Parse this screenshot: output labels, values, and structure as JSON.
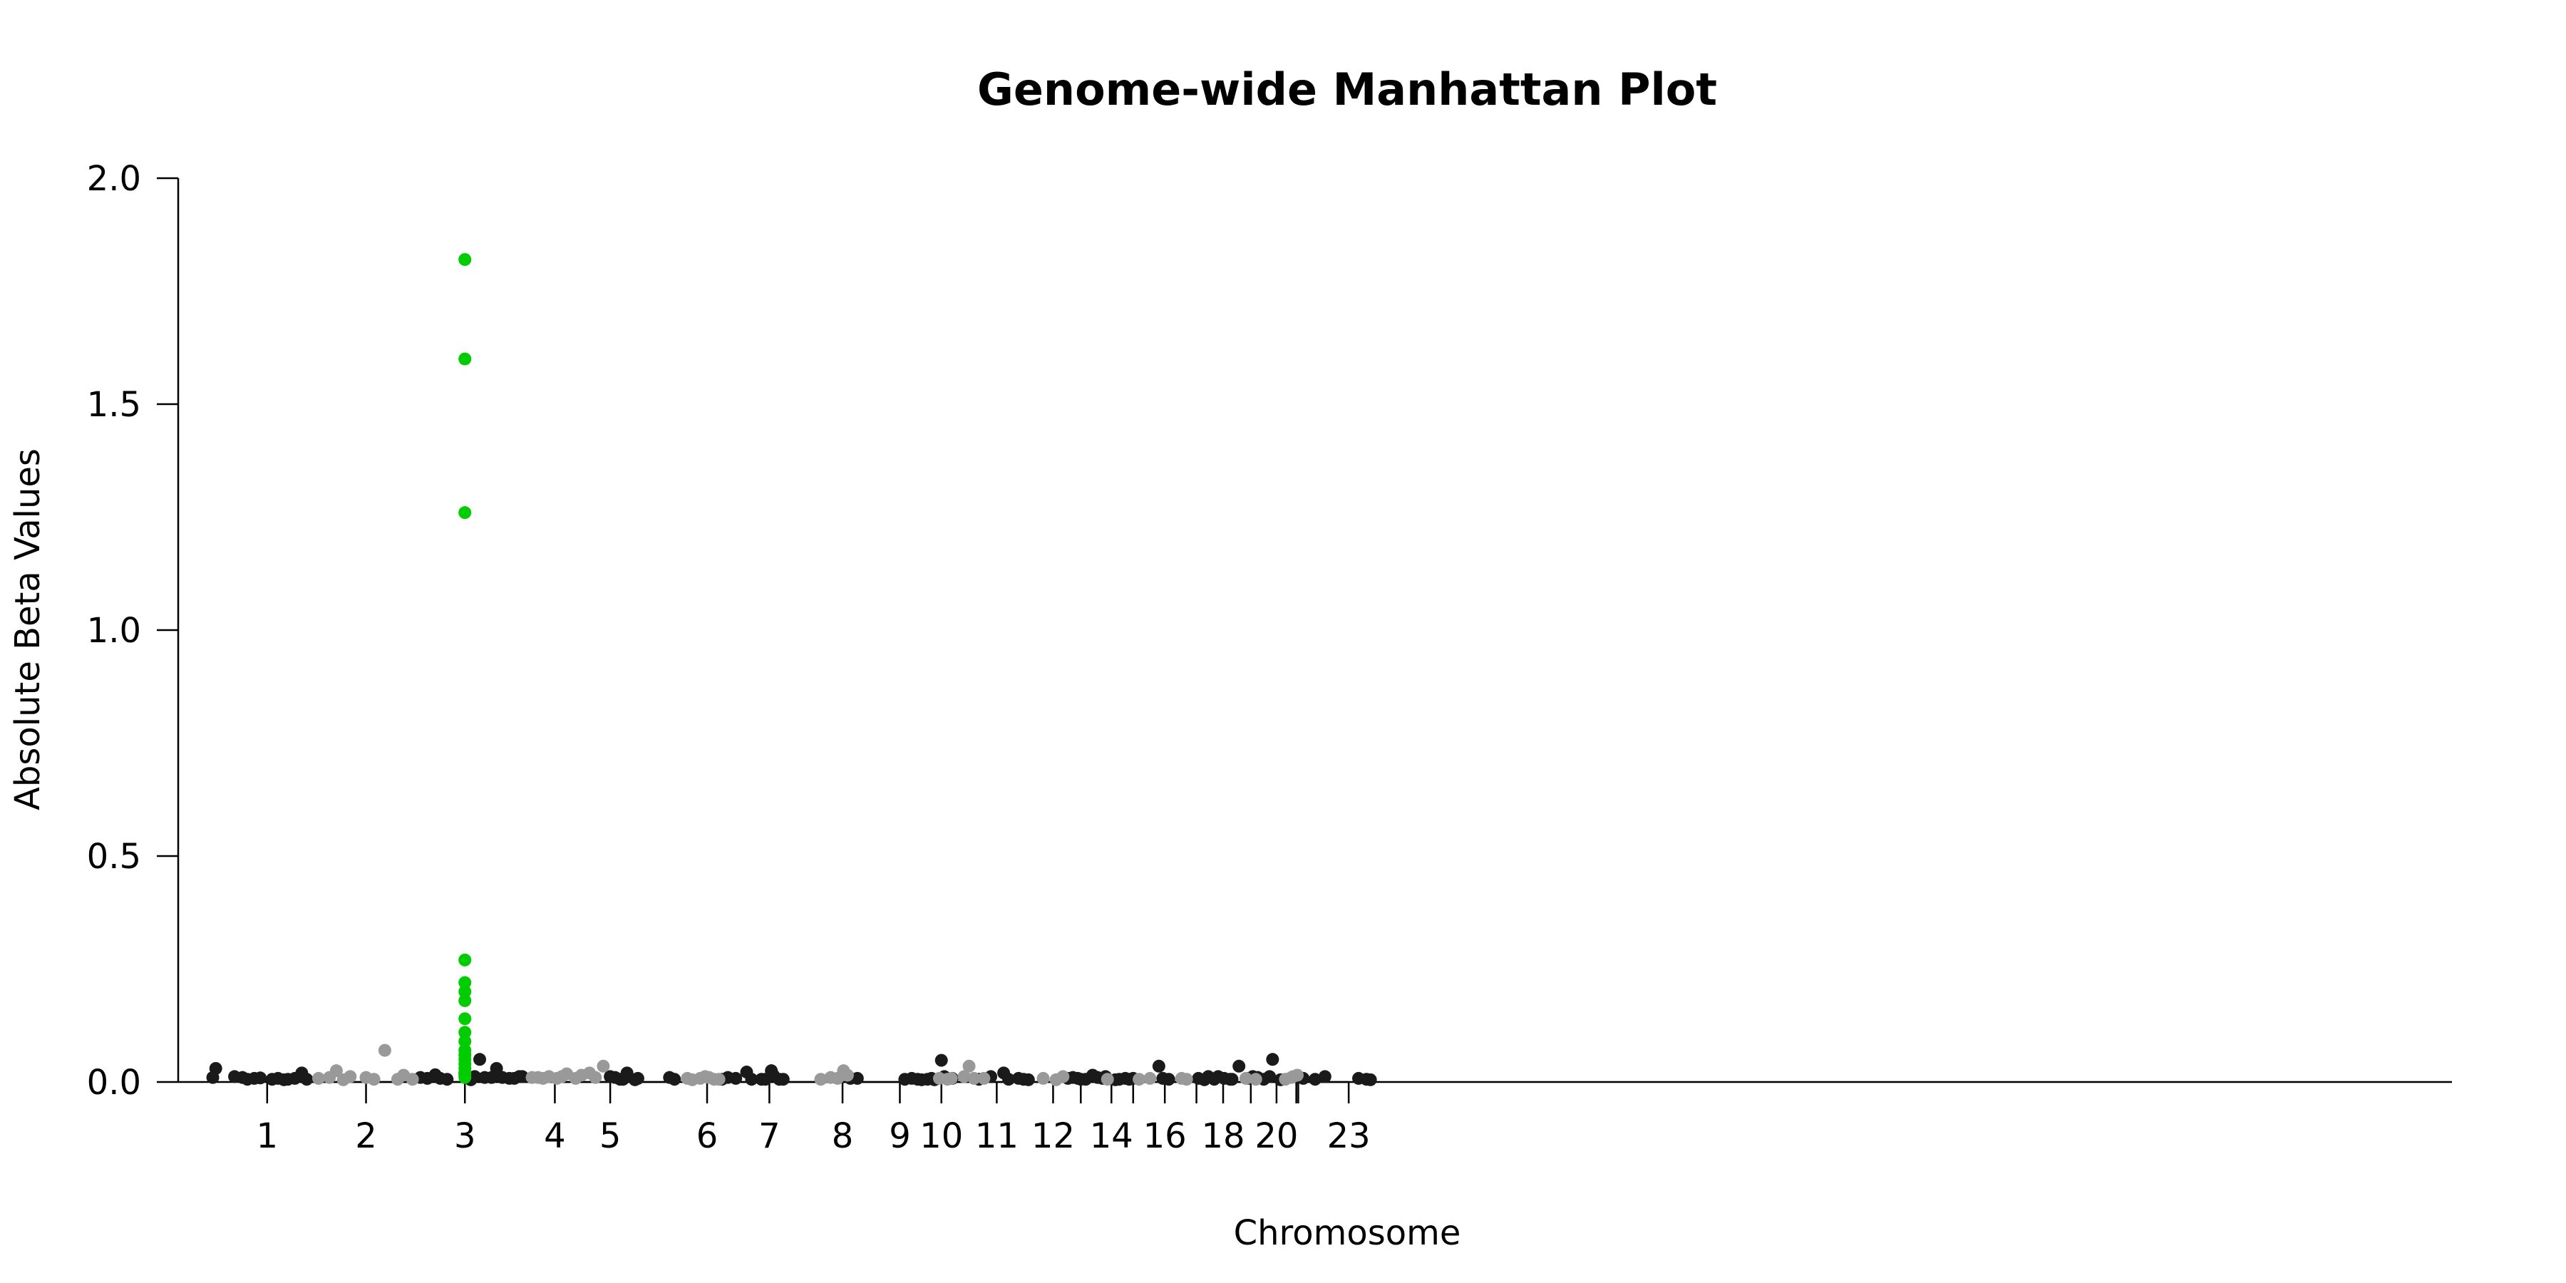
{
  "chart_data": {
    "type": "scatter",
    "title": "Genome-wide Manhattan Plot",
    "xlabel": "Chromosome",
    "ylabel": "Absolute Beta Values",
    "ylim": [
      0,
      2.0
    ],
    "yticks": [
      "0.0",
      "0.5",
      "1.0",
      "1.5",
      "2.0"
    ],
    "xlim": [
      0.1,
      23.1
    ],
    "xticks": [
      {
        "label": "1",
        "x": 1.0
      },
      {
        "label": "2",
        "x": 2.0
      },
      {
        "label": "3",
        "x": 3.0
      },
      {
        "label": "4",
        "x": 3.91
      },
      {
        "label": "5",
        "x": 4.47
      },
      {
        "label": "6",
        "x": 5.45
      },
      {
        "label": "7",
        "x": 6.08
      },
      {
        "label": "8",
        "x": 6.82
      },
      {
        "label": "9",
        "x": 7.4
      },
      {
        "label": "10",
        "x": 7.82
      },
      {
        "label": "11",
        "x": 8.38
      },
      {
        "label": "12",
        "x": 8.95
      },
      {
        "label": "14",
        "x": 9.54
      },
      {
        "label": "16",
        "x": 10.08
      },
      {
        "label": "18",
        "x": 10.67
      },
      {
        "label": "20",
        "x": 11.21
      },
      {
        "label": "23",
        "x": 11.94
      }
    ],
    "extra_ticks": [
      9.23,
      9.76,
      10.4,
      10.95,
      11.41,
      11.43
    ],
    "colors": {
      "dark": "#1a1a1a",
      "light": "#999999",
      "highlight": "#00cc00"
    },
    "grid": false,
    "legend": "none",
    "series": [
      {
        "color": "dark",
        "points": [
          [
            0.45,
            0.01
          ],
          [
            0.48,
            0.03
          ],
          [
            0.67,
            0.012
          ],
          [
            0.75,
            0.01
          ],
          [
            0.8,
            0.006
          ],
          [
            0.87,
            0.008
          ],
          [
            0.93,
            0.009
          ],
          [
            1.05,
            0.006
          ],
          [
            1.11,
            0.008
          ],
          [
            1.17,
            0.005
          ],
          [
            1.21,
            0.006
          ],
          [
            1.28,
            0.008
          ],
          [
            1.35,
            0.02
          ],
          [
            1.4,
            0.006
          ],
          [
            2.55,
            0.01
          ],
          [
            2.62,
            0.008
          ],
          [
            2.7,
            0.016
          ],
          [
            2.75,
            0.008
          ],
          [
            2.82,
            0.006
          ],
          [
            3.0,
            0.02
          ],
          [
            3.06,
            0.005
          ],
          [
            3.1,
            0.012
          ],
          [
            3.15,
            0.05
          ],
          [
            3.2,
            0.01
          ],
          [
            3.27,
            0.01
          ],
          [
            3.32,
            0.03
          ],
          [
            3.38,
            0.01
          ],
          [
            3.45,
            0.008
          ],
          [
            3.5,
            0.008
          ],
          [
            3.55,
            0.012
          ],
          [
            3.58,
            0.012
          ],
          [
            4.47,
            0.012
          ],
          [
            4.52,
            0.01
          ],
          [
            4.57,
            0.006
          ],
          [
            4.64,
            0.02
          ],
          [
            4.6,
            0.006
          ],
          [
            4.72,
            0.005
          ],
          [
            4.75,
            0.008
          ],
          [
            5.07,
            0.01
          ],
          [
            5.12,
            0.006
          ],
          [
            5.6,
            0.006
          ],
          [
            5.66,
            0.01
          ],
          [
            5.74,
            0.008
          ],
          [
            5.85,
            0.022
          ],
          [
            5.9,
            0.006
          ],
          [
            6.0,
            0.006
          ],
          [
            6.04,
            0.006
          ],
          [
            6.1,
            0.025
          ],
          [
            6.12,
            0.015
          ],
          [
            6.18,
            0.006
          ],
          [
            6.22,
            0.006
          ],
          [
            6.9,
            0.008
          ],
          [
            6.97,
            0.008
          ],
          [
            7.45,
            0.006
          ],
          [
            7.52,
            0.008
          ],
          [
            7.58,
            0.006
          ],
          [
            7.62,
            0.005
          ],
          [
            7.68,
            0.006
          ],
          [
            7.72,
            0.008
          ],
          [
            7.75,
            0.005
          ],
          [
            7.82,
            0.048
          ],
          [
            7.85,
            0.012
          ],
          [
            7.93,
            0.008
          ],
          [
            8.2,
            0.006
          ],
          [
            8.32,
            0.012
          ],
          [
            8.45,
            0.02
          ],
          [
            8.5,
            0.006
          ],
          [
            8.6,
            0.008
          ],
          [
            8.65,
            0.006
          ],
          [
            8.7,
            0.005
          ],
          [
            9.1,
            0.008
          ],
          [
            9.15,
            0.01
          ],
          [
            9.2,
            0.008
          ],
          [
            9.23,
            0.006
          ],
          [
            9.28,
            0.006
          ],
          [
            9.35,
            0.015
          ],
          [
            9.4,
            0.01
          ],
          [
            9.45,
            0.008
          ],
          [
            9.48,
            0.012
          ],
          [
            9.58,
            0.005
          ],
          [
            9.62,
            0.006
          ],
          [
            9.68,
            0.008
          ],
          [
            9.72,
            0.006
          ],
          [
            9.76,
            0.008
          ],
          [
            10.02,
            0.035
          ],
          [
            10.06,
            0.008
          ],
          [
            10.12,
            0.006
          ],
          [
            10.42,
            0.008
          ],
          [
            10.48,
            0.005
          ],
          [
            10.52,
            0.012
          ],
          [
            10.58,
            0.006
          ],
          [
            10.62,
            0.012
          ],
          [
            10.68,
            0.008
          ],
          [
            10.74,
            0.006
          ],
          [
            10.76,
            0.006
          ],
          [
            10.83,
            0.035
          ],
          [
            10.93,
            0.008
          ],
          [
            10.97,
            0.012
          ],
          [
            11.02,
            0.01
          ],
          [
            11.08,
            0.006
          ],
          [
            11.14,
            0.012
          ],
          [
            11.17,
            0.05
          ],
          [
            11.25,
            0.005
          ],
          [
            11.48,
            0.008
          ],
          [
            11.6,
            0.006
          ],
          [
            11.7,
            0.012
          ],
          [
            12.04,
            0.008
          ],
          [
            12.12,
            0.006
          ],
          [
            12.16,
            0.005
          ]
        ]
      },
      {
        "color": "light",
        "points": [
          [
            1.52,
            0.008
          ],
          [
            1.63,
            0.01
          ],
          [
            1.7,
            0.025
          ],
          [
            1.77,
            0.005
          ],
          [
            1.84,
            0.012
          ],
          [
            2.0,
            0.01
          ],
          [
            2.08,
            0.006
          ],
          [
            2.19,
            0.07
          ],
          [
            2.32,
            0.006
          ],
          [
            2.38,
            0.015
          ],
          [
            2.47,
            0.006
          ],
          [
            3.68,
            0.01
          ],
          [
            3.74,
            0.01
          ],
          [
            3.79,
            0.008
          ],
          [
            3.85,
            0.012
          ],
          [
            3.93,
            0.008
          ],
          [
            3.98,
            0.012
          ],
          [
            4.03,
            0.018
          ],
          [
            4.12,
            0.008
          ],
          [
            4.18,
            0.015
          ],
          [
            4.26,
            0.02
          ],
          [
            4.32,
            0.01
          ],
          [
            4.4,
            0.035
          ],
          [
            5.25,
            0.008
          ],
          [
            5.3,
            0.005
          ],
          [
            5.38,
            0.008
          ],
          [
            5.43,
            0.012
          ],
          [
            5.47,
            0.01
          ],
          [
            5.52,
            0.006
          ],
          [
            5.57,
            0.006
          ],
          [
            6.6,
            0.006
          ],
          [
            6.7,
            0.01
          ],
          [
            6.77,
            0.008
          ],
          [
            6.83,
            0.025
          ],
          [
            6.87,
            0.015
          ],
          [
            7.8,
            0.008
          ],
          [
            7.88,
            0.006
          ],
          [
            7.92,
            0.008
          ],
          [
            8.05,
            0.012
          ],
          [
            8.1,
            0.035
          ],
          [
            8.15,
            0.008
          ],
          [
            8.25,
            0.008
          ],
          [
            8.85,
            0.008
          ],
          [
            8.98,
            0.005
          ],
          [
            9.05,
            0.012
          ],
          [
            9.5,
            0.006
          ],
          [
            9.82,
            0.006
          ],
          [
            9.93,
            0.008
          ],
          [
            10.25,
            0.008
          ],
          [
            10.3,
            0.006
          ],
          [
            10.9,
            0.008
          ],
          [
            11.0,
            0.006
          ],
          [
            11.3,
            0.006
          ],
          [
            11.36,
            0.01
          ],
          [
            11.38,
            0.012
          ],
          [
            11.42,
            0.015
          ]
        ]
      },
      {
        "color": "highlight",
        "points": [
          [
            3.0,
            1.82
          ],
          [
            3.0,
            1.6
          ],
          [
            3.0,
            1.26
          ],
          [
            3.0,
            0.27
          ],
          [
            3.0,
            0.22
          ],
          [
            3.0,
            0.2
          ],
          [
            3.0,
            0.18
          ],
          [
            3.0,
            0.14
          ],
          [
            3.0,
            0.11
          ],
          [
            3.0,
            0.09
          ],
          [
            3.0,
            0.07
          ],
          [
            3.0,
            0.06
          ],
          [
            3.0,
            0.05
          ],
          [
            3.0,
            0.04
          ],
          [
            3.0,
            0.03
          ],
          [
            3.0,
            0.02
          ],
          [
            3.0,
            0.015
          ],
          [
            3.0,
            0.01
          ]
        ]
      }
    ]
  }
}
